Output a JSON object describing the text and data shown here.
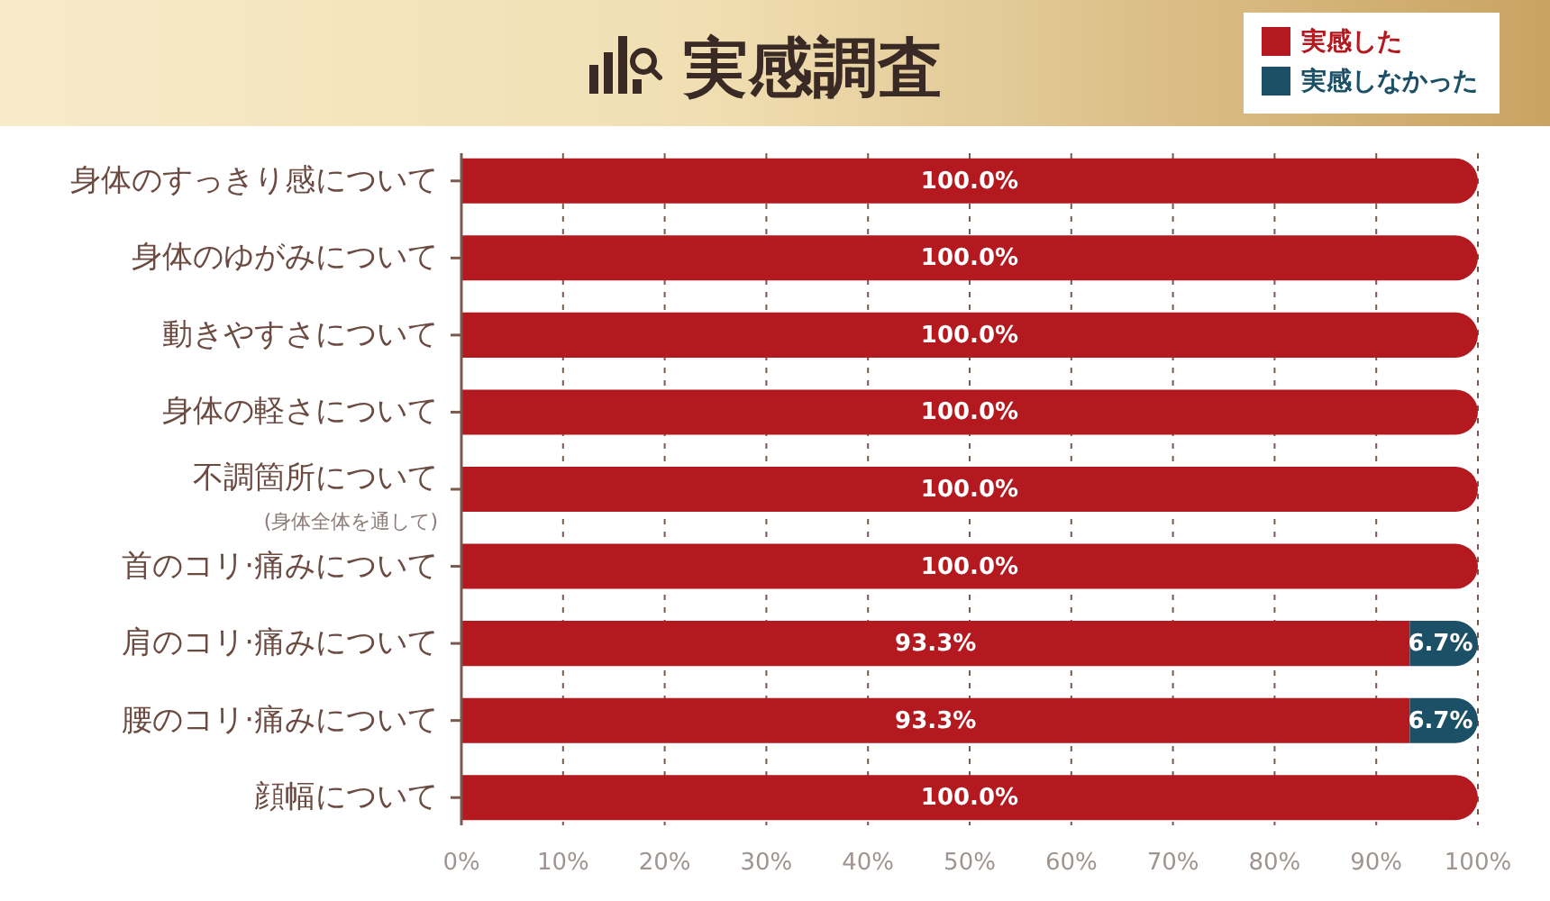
{
  "chart_data": {
    "type": "bar",
    "orientation": "horizontal",
    "stacked": true,
    "title": "実感調査",
    "categories": [
      "身体のすっきり感について",
      "身体のゆがみについて",
      "動きやすさについて",
      "身体の軽さについて",
      "不調箇所について\n(身体全体を通して)",
      "首のコリ·痛みについて",
      "肩のコリ·痛みについて",
      "腰のコリ·痛みについて",
      "顔幅について"
    ],
    "series": [
      {
        "name": "実感した",
        "color": "#b3191f",
        "values": [
          100,
          100,
          100,
          100,
          100,
          100,
          93.3,
          93.3,
          100
        ],
        "value_labels": [
          "100.0%",
          "100.0%",
          "100.0%",
          "100.0%",
          "100.0%",
          "100.0%",
          "93.3%",
          "93.3%",
          "100.0%"
        ]
      },
      {
        "name": "実感しなかった",
        "color": "#1c5067",
        "values": [
          null,
          null,
          null,
          null,
          null,
          null,
          6.7,
          6.7,
          null
        ],
        "value_labels": [
          null,
          null,
          null,
          null,
          null,
          null,
          "6.7%",
          "6.7%",
          null
        ]
      }
    ],
    "xlim": [
      0,
      100
    ],
    "xticks": [
      {
        "value": 0,
        "label": "0%"
      },
      {
        "value": 10,
        "label": "10%"
      },
      {
        "value": 20,
        "label": "20%"
      },
      {
        "value": 30,
        "label": "30%"
      },
      {
        "value": 40,
        "label": "40%"
      },
      {
        "value": 50,
        "label": "50%"
      },
      {
        "value": 60,
        "label": "60%"
      },
      {
        "value": 70,
        "label": "70%"
      },
      {
        "value": 80,
        "label": "80%"
      },
      {
        "value": 90,
        "label": "90%"
      },
      {
        "value": 100,
        "label": "100%"
      }
    ],
    "grid": "x",
    "legend": "top right"
  }
}
